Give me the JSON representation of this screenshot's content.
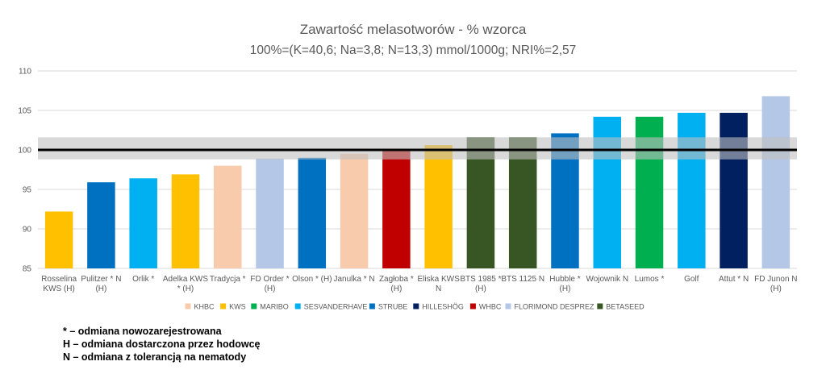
{
  "chart_data": {
    "type": "bar",
    "title": "Zawartość melasotworów - % wzorca",
    "subtitle": "100%=(K=40,6; Na=3,8; N=13,3) mmol/1000g; NRI%=2,57",
    "ylim": [
      85,
      110
    ],
    "yticks": [
      85,
      90,
      95,
      100,
      105,
      110
    ],
    "grid": true,
    "reference_line": 100,
    "reference_band": [
      98.8,
      101.6
    ],
    "legend_position": "bottom",
    "categories": [
      [
        "Rosselina",
        "KWS (H)"
      ],
      [
        "Pulitzer * N",
        "(H)"
      ],
      [
        "Orlik *"
      ],
      [
        "Adelka KWS",
        "* (H)"
      ],
      [
        "Tradycja *"
      ],
      [
        "FD Order *",
        "(H)"
      ],
      [
        "Olson * (H)"
      ],
      [
        "Janulka * N"
      ],
      [
        "Zagłoba *",
        "(H)"
      ],
      [
        "Eliska KWS",
        "N"
      ],
      [
        "BTS 1985 *",
        "(H)"
      ],
      [
        "BTS 1125 N"
      ],
      [
        "Hubble *",
        "(H)"
      ],
      [
        "Wojownik N"
      ],
      [
        "Lumos *"
      ],
      [
        "Golf"
      ],
      [
        "Attut * N"
      ],
      [
        "FD Junon N",
        "(H)"
      ]
    ],
    "values": [
      92.2,
      95.9,
      96.4,
      96.9,
      98.0,
      98.9,
      99.0,
      99.5,
      100.0,
      100.6,
      101.6,
      101.6,
      102.1,
      104.2,
      104.2,
      104.7,
      104.7,
      106.8
    ],
    "breeders": [
      "KWS",
      "STRUBE",
      "SESVANDERHAVE",
      "KWS",
      "KHBC",
      "FLORIMOND DESPREZ",
      "STRUBE",
      "KHBC",
      "WHBC",
      "KWS",
      "BETASEED",
      "BETASEED",
      "STRUBE",
      "SESVANDERHAVE",
      "MARIBO",
      "SESVANDERHAVE",
      "HILLESHÖG",
      "FLORIMOND DESPREZ"
    ],
    "legend": [
      {
        "name": "KHBC",
        "color": "#F8CBAD"
      },
      {
        "name": "KWS",
        "color": "#FFC000"
      },
      {
        "name": "MARIBO",
        "color": "#00B050"
      },
      {
        "name": "SESVANDERHAVE",
        "color": "#00B0F0"
      },
      {
        "name": "STRUBE",
        "color": "#0070C0"
      },
      {
        "name": "HILLESHÖG",
        "color": "#002060"
      },
      {
        "name": "WHBC",
        "color": "#C00000"
      },
      {
        "name": "FLORIMOND DESPREZ",
        "color": "#B4C7E7"
      },
      {
        "name": "BETASEED",
        "color": "#375623"
      }
    ]
  },
  "notes": [
    "* – odmiana nowozarejestrowana",
    "H – odmiana dostarczona przez hodowcę",
    "N – odmiana z tolerancją na nematody"
  ]
}
